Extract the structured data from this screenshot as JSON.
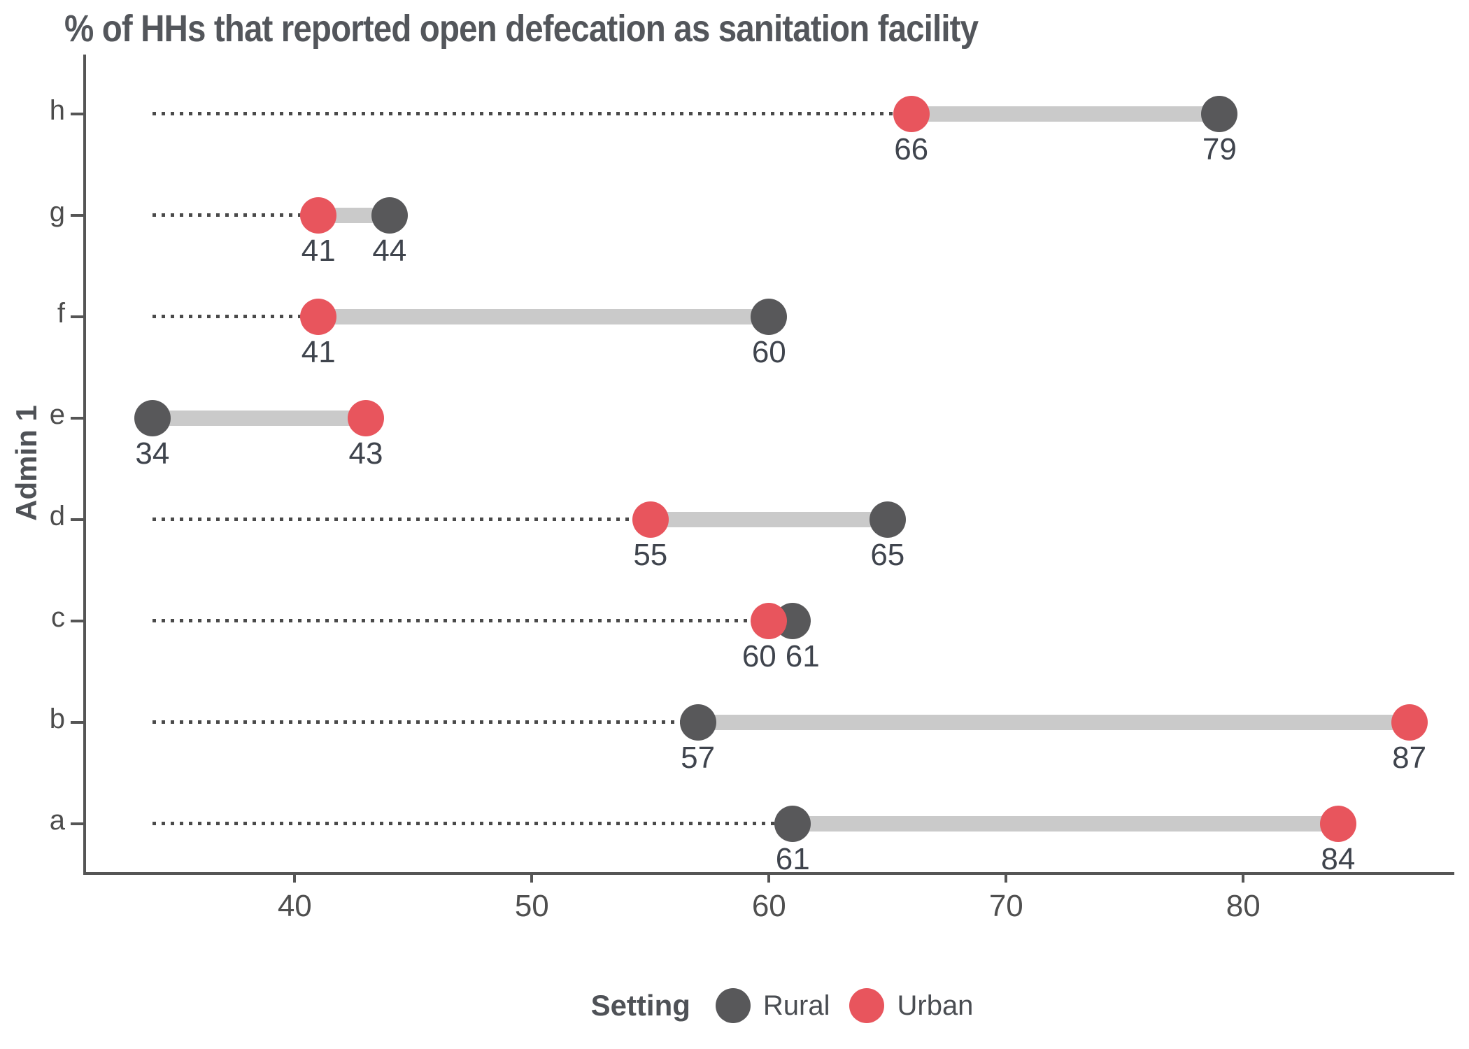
{
  "chart_data": {
    "type": "dumbbell",
    "title": "% of HHs that reported open defecation as sanitation facility",
    "ylabel": "Admin 1",
    "xlabel": "",
    "x_ticks": [
      40,
      50,
      60,
      70,
      80
    ],
    "x_domain": [
      31.2,
      88.9
    ],
    "connector_start": 34,
    "grid": "off",
    "categories_top_to_bottom": [
      "h",
      "g",
      "f",
      "e",
      "d",
      "c",
      "b",
      "a"
    ],
    "series": [
      {
        "name": "Rural",
        "color": "#58585a",
        "values": [
          79,
          44,
          60,
          34,
          65,
          61,
          57,
          61
        ]
      },
      {
        "name": "Urban",
        "color": "#e8555d",
        "values": [
          66,
          41,
          41,
          43,
          55,
          60,
          87,
          84
        ]
      }
    ],
    "point_labels_shown": true,
    "legend": {
      "position": "bottom",
      "title": "Setting",
      "items": [
        {
          "label": "Rural",
          "color": "#58585a"
        },
        {
          "label": "Urban",
          "color": "#e8555d"
        }
      ]
    },
    "colors": {
      "connector_bar": "#cacaca",
      "dotted_line": "#4a4a4a",
      "axis_line": "#555555",
      "tick_text": "#4f4f4f",
      "value_label_text": "#3f444d",
      "title_text": "#53565b"
    }
  }
}
